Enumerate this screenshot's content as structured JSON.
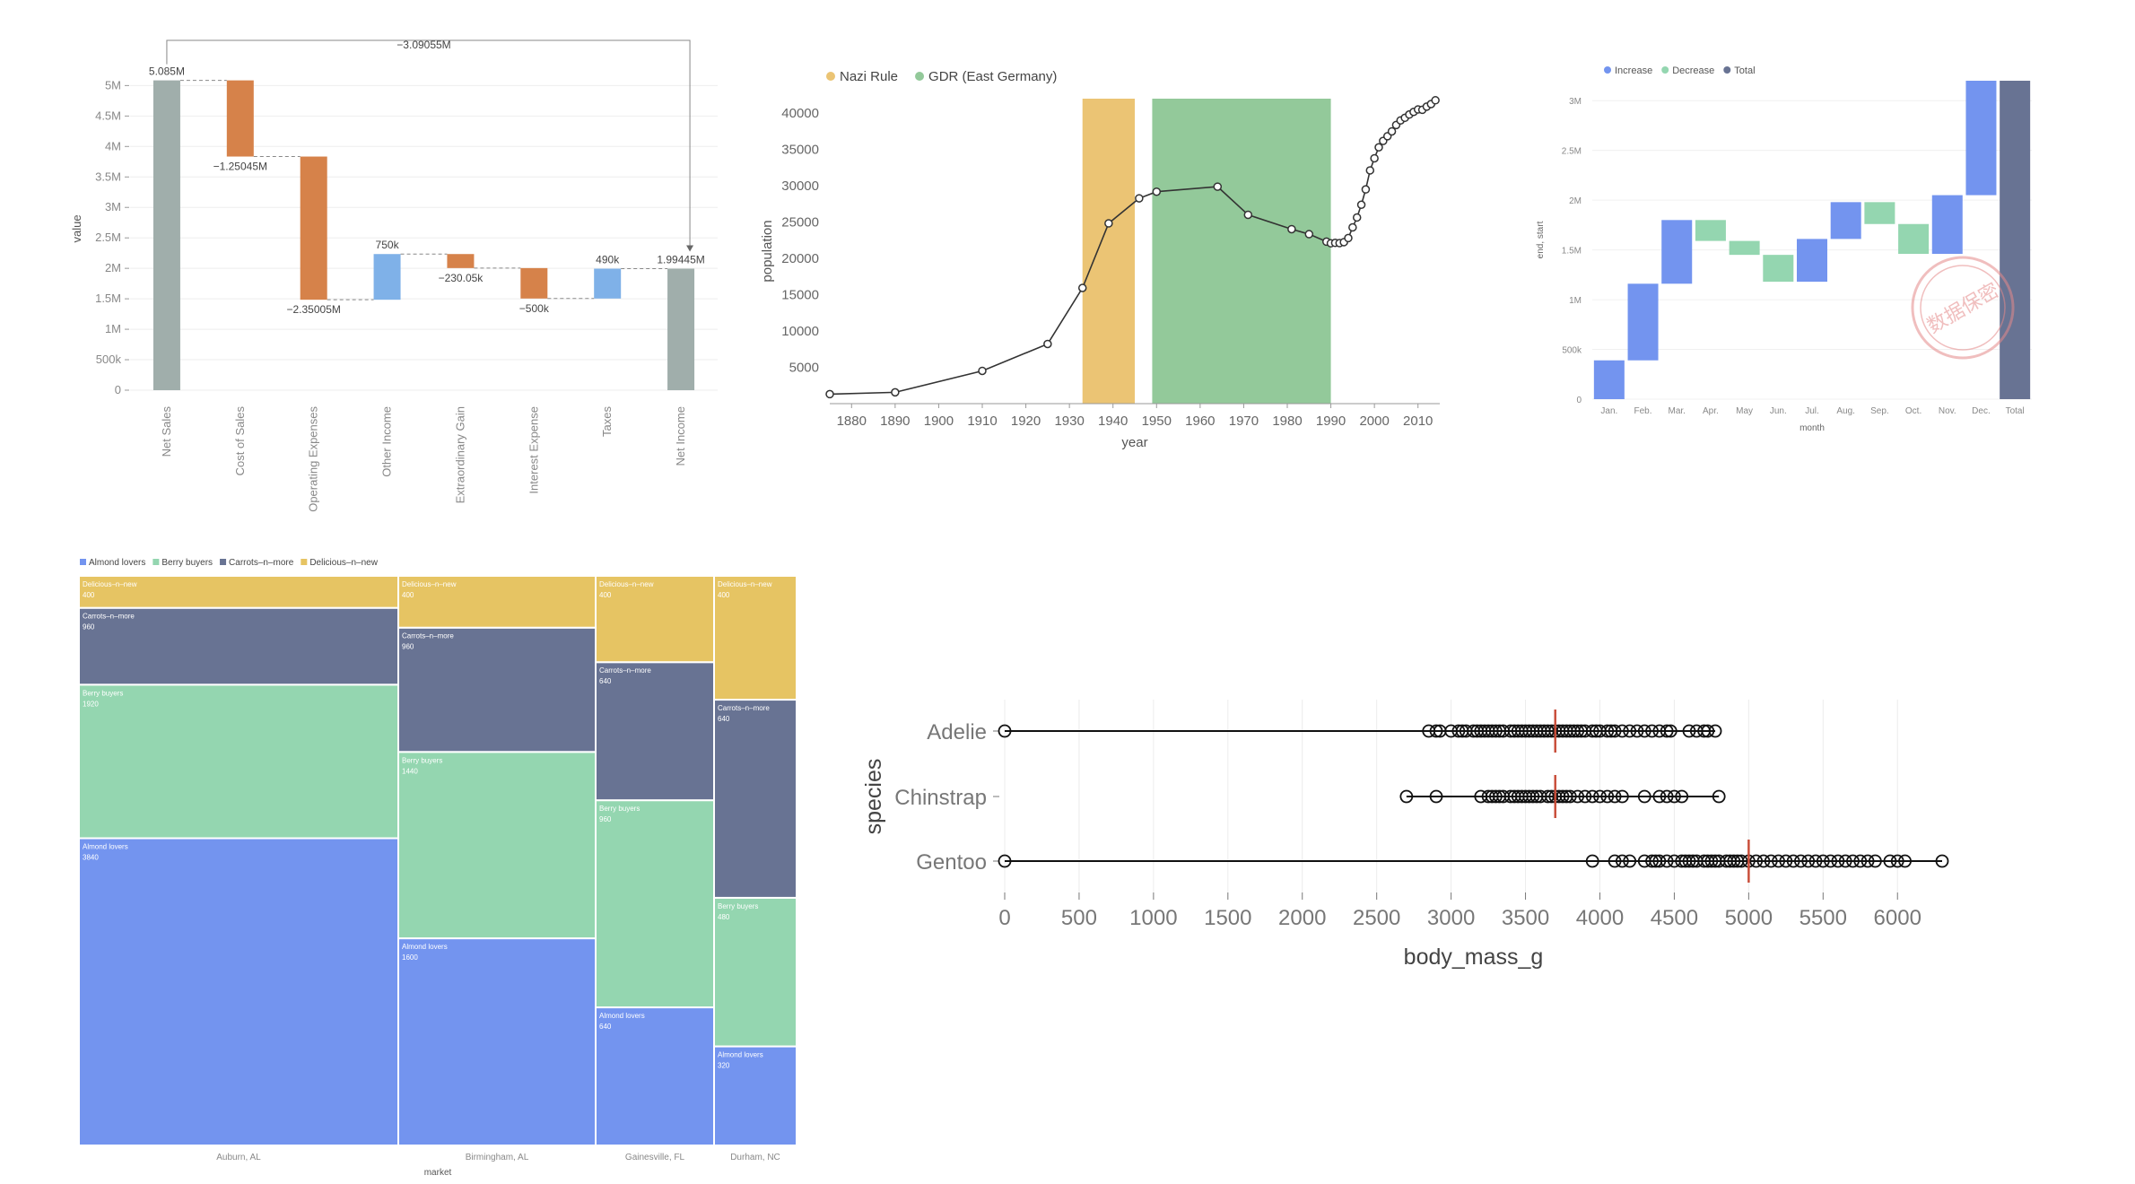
{
  "chart_data": [
    {
      "type": "bar",
      "subtype": "waterfall",
      "title": "",
      "xlabel": "",
      "ylabel": "value",
      "ylim": [
        0,
        5300000
      ],
      "yticks": [
        {
          "v": 0,
          "label": "0"
        },
        {
          "v": 500000,
          "label": "500k"
        },
        {
          "v": 1000000,
          "label": "1M"
        },
        {
          "v": 1500000,
          "label": "1.5M"
        },
        {
          "v": 2000000,
          "label": "2M"
        },
        {
          "v": 2500000,
          "label": "2.5M"
        },
        {
          "v": 3000000,
          "label": "3M"
        },
        {
          "v": 3500000,
          "label": "3.5M"
        },
        {
          "v": 4000000,
          "label": "4M"
        },
        {
          "v": 4500000,
          "label": "4.5M"
        },
        {
          "v": 5000000,
          "label": "5M"
        }
      ],
      "categories": [
        "Net Sales",
        "Cost of Sales",
        "Operating Expenses",
        "Other Income",
        "Extraordinary Gain",
        "Interest Expense",
        "Taxes",
        "Net Income"
      ],
      "values": [
        5085000,
        -1250450,
        -2350050,
        750000,
        -230050,
        -500000,
        490000,
        1994450
      ],
      "kinds": [
        "total",
        "decrease",
        "decrease",
        "increase",
        "decrease",
        "decrease",
        "increase",
        "total"
      ],
      "value_labels": [
        "5.085M",
        "−1.25045M",
        "−2.35005M",
        "750k",
        "−230.05k",
        "−500k",
        "490k",
        "1.99445M"
      ],
      "annotation": "−3.09055M",
      "colors": {
        "total": "#a0aeab",
        "decrease": "#d6824a",
        "increase": "#7fb1e8"
      }
    },
    {
      "type": "line",
      "title": "",
      "xlabel": "year",
      "ylabel": "population",
      "xlim": [
        1875,
        2015
      ],
      "ylim": [
        0,
        42000
      ],
      "xticks": [
        1880,
        1890,
        1900,
        1910,
        1920,
        1930,
        1940,
        1950,
        1960,
        1970,
        1980,
        1990,
        2000,
        2010
      ],
      "yticks": [
        5000,
        10000,
        15000,
        20000,
        25000,
        30000,
        35000,
        40000
      ],
      "legend": [
        {
          "name": "Nazi Rule",
          "color": "#ebc474"
        },
        {
          "name": "GDR (East Germany)",
          "color": "#93c99a"
        }
      ],
      "bands": [
        {
          "name": "Nazi Rule",
          "start": 1933,
          "end": 1945,
          "color": "#ebc474"
        },
        {
          "name": "GDR (East Germany)",
          "start": 1949,
          "end": 1990,
          "color": "#93c99a"
        }
      ],
      "x": [
        1875,
        1890,
        1910,
        1925,
        1933,
        1939,
        1946,
        1950,
        1964,
        1971,
        1981,
        1985,
        1989,
        1990,
        1991,
        1992,
        1993,
        1994,
        1995,
        1996,
        1997,
        1998,
        1999,
        2000,
        2001,
        2002,
        2003,
        2004,
        2005,
        2006,
        2007,
        2008,
        2009,
        2010,
        2011,
        2012,
        2013,
        2014
      ],
      "y": [
        1309,
        1558,
        4512,
        8220,
        15934,
        24824,
        28275,
        29189,
        29881,
        26007,
        24029,
        23340,
        22307,
        22087,
        22139,
        22105,
        22242,
        22801,
        24273,
        25640,
        27393,
        29505,
        32124,
        33791,
        35297,
        36179,
        36829,
        37493,
        38376,
        39008,
        39366,
        39821,
        40179,
        40511,
        40465,
        40905,
        41258,
        41777
      ],
      "line_color": "#333333"
    },
    {
      "type": "bar",
      "subtype": "waterfall",
      "title": "",
      "xlabel": "month",
      "ylabel": "end, start",
      "ylim": [
        0,
        3200000
      ],
      "yticks": [
        {
          "v": 0,
          "label": "0"
        },
        {
          "v": 500000,
          "label": "500k"
        },
        {
          "v": 1000000,
          "label": "1M"
        },
        {
          "v": 1500000,
          "label": "1.5M"
        },
        {
          "v": 2000000,
          "label": "2M"
        },
        {
          "v": 2500000,
          "label": "2.5M"
        },
        {
          "v": 3000000,
          "label": "3M"
        }
      ],
      "legend": [
        {
          "name": "Increase",
          "color": "#7394ef"
        },
        {
          "name": "Decrease",
          "color": "#94d6b0"
        },
        {
          "name": "Total",
          "color": "#687393"
        }
      ],
      "categories": [
        "Jan.",
        "Feb.",
        "Mar.",
        "Apr.",
        "May",
        "Jun.",
        "Jul.",
        "Aug.",
        "Sep.",
        "Oct.",
        "Nov.",
        "Dec.",
        "Total"
      ],
      "starts": [
        0,
        390000,
        1160000,
        1800000,
        1590000,
        1450000,
        1180000,
        1610000,
        1980000,
        1760000,
        1460000,
        2050000,
        0
      ],
      "ends": [
        390000,
        1160000,
        1800000,
        1590000,
        1450000,
        1180000,
        1610000,
        1980000,
        1760000,
        1460000,
        2050000,
        3200000,
        3200000
      ],
      "kinds": [
        "increase",
        "increase",
        "increase",
        "decrease",
        "decrease",
        "decrease",
        "increase",
        "increase",
        "decrease",
        "decrease",
        "increase",
        "increase",
        "total"
      ],
      "stamp_text": "数据保密"
    },
    {
      "type": "bar",
      "subtype": "marimekko",
      "title": "",
      "xlabel": "market",
      "ylabel": "",
      "legend": [
        {
          "name": "Almond lovers",
          "color": "#7394ef"
        },
        {
          "name": "Berry buyers",
          "color": "#94d6b0"
        },
        {
          "name": "Carrots-n-more",
          "color": "#687393"
        },
        {
          "name": "Delicious-n-new",
          "color": "#e6c463"
        }
      ],
      "series_order": [
        "Almond lovers",
        "Berry buyers",
        "Carrots-n-more",
        "Delicious-n-new"
      ],
      "display_names": {
        "Almond lovers": "Almond lovers",
        "Berry buyers": "Berry buyers",
        "Carrots-n-more": "Carrots–n–more",
        "Delicious-n-new": "Delicious–n–new"
      },
      "markets": [
        {
          "name": "Auburn, AL",
          "values": {
            "Almond lovers": 3840,
            "Berry buyers": 1920,
            "Carrots-n-more": 960,
            "Delicious-n-new": 400
          }
        },
        {
          "name": "Birmingham, AL",
          "values": {
            "Almond lovers": 1600,
            "Berry buyers": 1440,
            "Carrots-n-more": 960,
            "Delicious-n-new": 400
          }
        },
        {
          "name": "Gainesville, FL",
          "values": {
            "Almond lovers": 640,
            "Berry buyers": 960,
            "Carrots-n-more": 640,
            "Delicious-n-new": 400
          }
        },
        {
          "name": "Durham, NC",
          "values": {
            "Almond lovers": 320,
            "Berry buyers": 480,
            "Carrots-n-more": 640,
            "Delicious-n-new": 400
          }
        }
      ]
    },
    {
      "type": "scatter",
      "subtype": "strip-with-range",
      "title": "",
      "xlabel": "body_mass_g",
      "ylabel": "species",
      "xlim": [
        0,
        6300
      ],
      "xticks": [
        0,
        500,
        1000,
        1500,
        2000,
        2500,
        3000,
        3500,
        4000,
        4500,
        5000,
        5500,
        6000
      ],
      "categories": [
        "Adelie",
        "Chinstrap",
        "Gentoo"
      ],
      "series": [
        {
          "name": "Adelie",
          "median": 3700,
          "min": 0,
          "max": 4775,
          "values": [
            0,
            2850,
            2900,
            2925,
            3000,
            3050,
            3075,
            3100,
            3150,
            3175,
            3200,
            3225,
            3250,
            3275,
            3300,
            3325,
            3350,
            3400,
            3425,
            3450,
            3475,
            3500,
            3525,
            3550,
            3575,
            3600,
            3625,
            3650,
            3675,
            3700,
            3725,
            3750,
            3775,
            3800,
            3825,
            3850,
            3875,
            3900,
            3950,
            3975,
            4000,
            4050,
            4075,
            4100,
            4150,
            4200,
            4250,
            4300,
            4350,
            4400,
            4450,
            4475,
            4600,
            4650,
            4700,
            4725,
            4775
          ]
        },
        {
          "name": "Chinstrap",
          "median": 3700,
          "min": 2700,
          "max": 4800,
          "values": [
            2700,
            2900,
            3200,
            3250,
            3275,
            3300,
            3325,
            3350,
            3400,
            3425,
            3450,
            3475,
            3500,
            3525,
            3550,
            3575,
            3600,
            3650,
            3675,
            3700,
            3725,
            3750,
            3775,
            3800,
            3850,
            3900,
            3950,
            4000,
            4050,
            4100,
            4150,
            4300,
            4400,
            4450,
            4500,
            4550,
            4800
          ]
        },
        {
          "name": "Gentoo",
          "median": 5000,
          "min": 0,
          "max": 6300,
          "values": [
            0,
            3950,
            4100,
            4150,
            4200,
            4300,
            4350,
            4375,
            4400,
            4450,
            4500,
            4550,
            4575,
            4600,
            4625,
            4650,
            4700,
            4725,
            4750,
            4775,
            4800,
            4850,
            4875,
            4900,
            4925,
            4950,
            5000,
            5050,
            5100,
            5150,
            5200,
            5250,
            5300,
            5350,
            5400,
            5450,
            5500,
            5550,
            5600,
            5650,
            5700,
            5750,
            5800,
            5850,
            5950,
            6000,
            6050,
            6300
          ]
        }
      ],
      "median_color": "#c94f3b"
    }
  ]
}
